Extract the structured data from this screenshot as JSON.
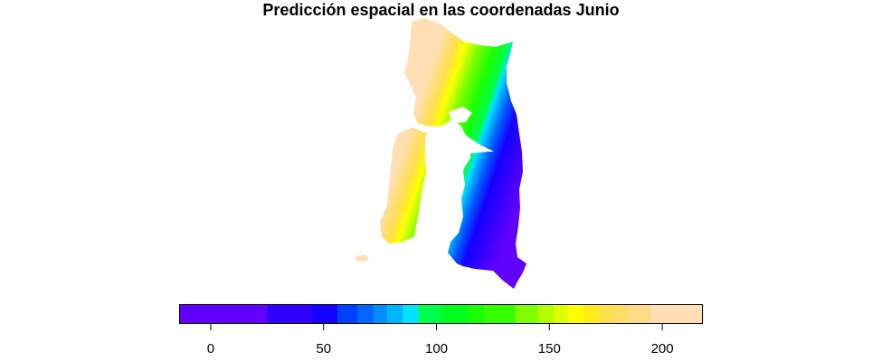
{
  "title": "Predicción espacial en las coordenadas Junio",
  "legend": {
    "range": [
      -14,
      218
    ],
    "ticks": [
      {
        "value": 0,
        "label": "0"
      },
      {
        "value": 50,
        "label": "50"
      },
      {
        "value": 100,
        "label": "100"
      },
      {
        "value": 150,
        "label": "150"
      },
      {
        "value": 200,
        "label": "200"
      }
    ],
    "bins": [
      {
        "from": -14,
        "to": 25,
        "color": "#6100FF"
      },
      {
        "from": 25,
        "to": 45,
        "color": "#2E00FF"
      },
      {
        "from": 45,
        "to": 56,
        "color": "#1400FF"
      },
      {
        "from": 56,
        "to": 65,
        "color": "#0040FF"
      },
      {
        "from": 65,
        "to": 72,
        "color": "#0066FF"
      },
      {
        "from": 72,
        "to": 78,
        "color": "#008CFF"
      },
      {
        "from": 78,
        "to": 85,
        "color": "#00B3FF"
      },
      {
        "from": 85,
        "to": 92,
        "color": "#00E1FF"
      },
      {
        "from": 92,
        "to": 102,
        "color": "#00FF4D"
      },
      {
        "from": 102,
        "to": 114,
        "color": "#00FF1A"
      },
      {
        "from": 114,
        "to": 121,
        "color": "#19FF00"
      },
      {
        "from": 121,
        "to": 135,
        "color": "#33FF00"
      },
      {
        "from": 135,
        "to": 145,
        "color": "#80FF00"
      },
      {
        "from": 145,
        "to": 152,
        "color": "#B3FF00"
      },
      {
        "from": 152,
        "to": 158,
        "color": "#DDFF00"
      },
      {
        "from": 158,
        "to": 165,
        "color": "#FFFF00"
      },
      {
        "from": 165,
        "to": 172,
        "color": "#FFEC1A"
      },
      {
        "from": 172,
        "to": 178,
        "color": "#FFDF4D"
      },
      {
        "from": 178,
        "to": 185,
        "color": "#FFDC66"
      },
      {
        "from": 185,
        "to": 195,
        "color": "#FFDB87"
      },
      {
        "from": 195,
        "to": 218,
        "color": "#FFDFB3"
      }
    ]
  },
  "map": {
    "value_gradient": [
      {
        "value": 200,
        "color": "#FFDFB3"
      },
      {
        "value": 175,
        "color": "#FFDF4D"
      },
      {
        "value": 160,
        "color": "#FFFF00"
      },
      {
        "value": 140,
        "color": "#80FF00"
      },
      {
        "value": 115,
        "color": "#19FF00"
      },
      {
        "value": 95,
        "color": "#00FF4D"
      },
      {
        "value": 88,
        "color": "#00E1FF"
      },
      {
        "value": 70,
        "color": "#0066FF"
      },
      {
        "value": 50,
        "color": "#1400FF"
      },
      {
        "value": 0,
        "color": "#6100FF"
      }
    ],
    "water_color": "#ffffff"
  }
}
